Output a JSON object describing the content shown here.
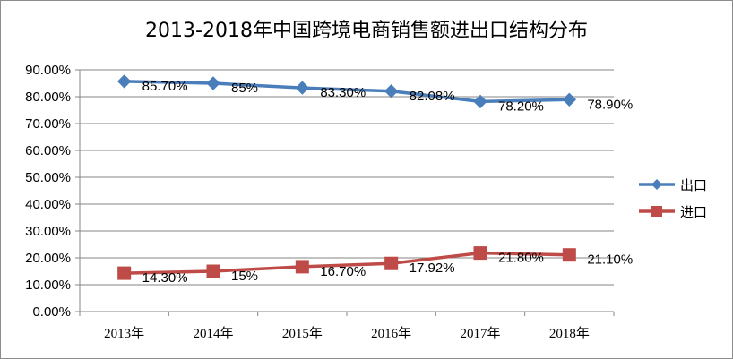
{
  "chart_data": {
    "type": "line",
    "title": "2013-2018年中国跨境电商销售额进出口结构分布",
    "categories": [
      "2013年",
      "2014年",
      "2015年",
      "2016年",
      "2017年",
      "2018年"
    ],
    "ylim": [
      0,
      90
    ],
    "y_ticks": [
      "0.00%",
      "10.00%",
      "20.00%",
      "30.00%",
      "40.00%",
      "50.00%",
      "60.00%",
      "70.00%",
      "80.00%",
      "90.00%"
    ],
    "grid": true,
    "legend_position": "right",
    "series": [
      {
        "name": "出口",
        "color": "#4A7EBB",
        "marker": "diamond",
        "values": [
          85.7,
          85,
          83.3,
          82.08,
          78.2,
          78.9
        ],
        "labels": [
          "85.70%",
          "85%",
          "83.30%",
          "82.08%",
          "78.20%",
          "78.90%"
        ]
      },
      {
        "name": "进口",
        "color": "#BE4B48",
        "marker": "square",
        "values": [
          14.3,
          15,
          16.7,
          17.92,
          21.8,
          21.1
        ],
        "labels": [
          "14.30%",
          "15%",
          "16.70%",
          "17.92%",
          "21.80%",
          "21.10%"
        ]
      }
    ]
  }
}
